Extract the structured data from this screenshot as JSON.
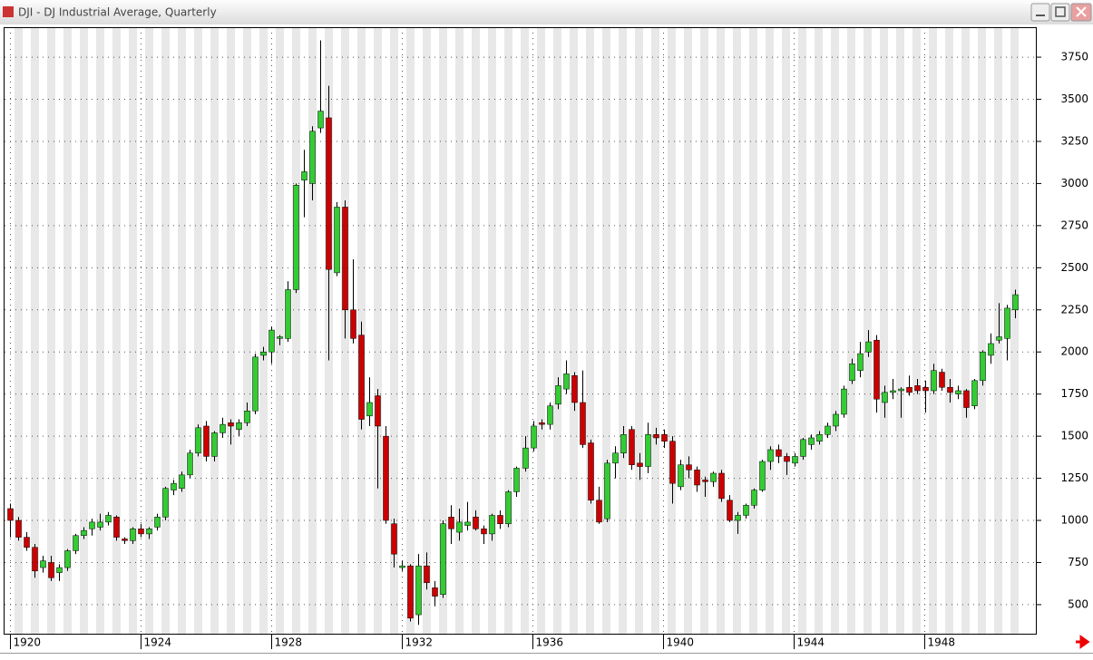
{
  "chart_data": {
    "type": "candlestick",
    "title": "DJI - DJ Industrial Average, Quarterly",
    "x": [
      1920,
      1920.25,
      1920.5,
      1920.75,
      1921,
      1921.25,
      1921.5,
      1921.75,
      1922,
      1922.25,
      1922.5,
      1922.75,
      1923,
      1923.25,
      1923.5,
      1923.75,
      1924,
      1924.25,
      1924.5,
      1924.75,
      1925,
      1925.25,
      1925.5,
      1925.75,
      1926,
      1926.25,
      1926.5,
      1926.75,
      1927,
      1927.25,
      1927.5,
      1927.75,
      1928,
      1928.25,
      1928.5,
      1928.75,
      1929,
      1929.25,
      1929.5,
      1929.75,
      1930,
      1930.25,
      1930.5,
      1930.75,
      1931,
      1931.25,
      1931.5,
      1931.75,
      1932,
      1932.25,
      1932.5,
      1932.75,
      1933,
      1933.25,
      1933.5,
      1933.75,
      1934,
      1934.25,
      1934.5,
      1934.75,
      1935,
      1935.25,
      1935.5,
      1935.75,
      1936,
      1936.25,
      1936.5,
      1936.75,
      1937,
      1937.25,
      1937.5,
      1937.75,
      1938,
      1938.25,
      1938.5,
      1938.75,
      1939,
      1939.25,
      1939.5,
      1939.75,
      1940,
      1940.25,
      1940.5,
      1940.75,
      1941,
      1941.25,
      1941.5,
      1941.75,
      1942,
      1942.25,
      1942.5,
      1942.75,
      1943,
      1943.25,
      1943.5,
      1943.75,
      1944,
      1944.25,
      1944.5,
      1944.75,
      1945,
      1945.25,
      1945.5,
      1945.75,
      1946,
      1946.25,
      1946.5,
      1946.75,
      1947,
      1947.25,
      1947.5,
      1947.75,
      1948,
      1948.25,
      1948.5,
      1948.75,
      1949,
      1949.25,
      1949.5,
      1949.75,
      1950,
      1950.25,
      1950.5,
      1950.75
    ],
    "open": [
      1070,
      1000,
      900,
      840,
      720,
      750,
      690,
      720,
      820,
      910,
      950,
      960,
      990,
      1020,
      890,
      880,
      950,
      920,
      960,
      1020,
      1180,
      1190,
      1270,
      1400,
      1560,
      1380,
      1520,
      1580,
      1540,
      1580,
      1650,
      1980,
      2000,
      2080,
      2080,
      2370,
      3020,
      3000,
      3330,
      3390,
      2470,
      2860,
      2250,
      2100,
      1620,
      1740,
      1500,
      980,
      720,
      730,
      440,
      730,
      600,
      560,
      1020,
      930,
      970,
      1020,
      950,
      920,
      1030,
      980,
      1170,
      1310,
      1430,
      1580,
      1570,
      1690,
      1780,
      1860,
      1700,
      1460,
      1120,
      1010,
      1340,
      1400,
      1540,
      1340,
      1320,
      1510,
      1510,
      1470,
      1200,
      1330,
      1300,
      1240,
      1230,
      1280,
      1120,
      1000,
      1030,
      1090,
      1180,
      1350,
      1420,
      1380,
      1340,
      1380,
      1450,
      1470,
      1510,
      1560,
      1630,
      1830,
      1890,
      2000,
      2070,
      1700,
      1760,
      1770,
      1790,
      1800,
      1790,
      1770,
      1880,
      1790,
      1750,
      1770,
      1680,
      1830,
      1980,
      2070,
      2080,
      2250
    ],
    "high": [
      1100,
      1020,
      930,
      860,
      790,
      790,
      740,
      830,
      920,
      960,
      1010,
      1040,
      1050,
      1030,
      900,
      960,
      980,
      960,
      1040,
      1200,
      1240,
      1290,
      1420,
      1570,
      1590,
      1530,
      1610,
      1600,
      1600,
      1700,
      1990,
      2030,
      2150,
      2100,
      2420,
      3000,
      3200,
      3340,
      3850,
      3580,
      2890,
      2900,
      2550,
      2180,
      1850,
      1780,
      1560,
      1010,
      760,
      740,
      800,
      810,
      640,
      1000,
      1090,
      1070,
      1110,
      1060,
      970,
      1040,
      1060,
      1180,
      1320,
      1500,
      1590,
      1600,
      1700,
      1850,
      1950,
      1880,
      1890,
      1480,
      1200,
      1360,
      1440,
      1560,
      1560,
      1400,
      1580,
      1550,
      1540,
      1500,
      1360,
      1380,
      1320,
      1260,
      1290,
      1300,
      1150,
      1050,
      1100,
      1190,
      1360,
      1440,
      1450,
      1400,
      1400,
      1490,
      1510,
      1530,
      1580,
      1650,
      1800,
      1960,
      2060,
      2130,
      2100,
      1800,
      1840,
      1790,
      1860,
      1840,
      1830,
      1930,
      1900,
      1840,
      1800,
      1780,
      1840,
      2010,
      2110,
      2290,
      2280,
      2370
    ],
    "low": [
      900,
      880,
      820,
      660,
      690,
      640,
      640,
      700,
      800,
      890,
      910,
      940,
      970,
      880,
      860,
      860,
      900,
      890,
      940,
      1000,
      1150,
      1170,
      1250,
      1380,
      1350,
      1350,
      1490,
      1450,
      1500,
      1560,
      1630,
      1950,
      1930,
      2040,
      2060,
      2350,
      2800,
      2900,
      3300,
      1950,
      2450,
      2080,
      2050,
      1540,
      1560,
      1190,
      980,
      720,
      700,
      400,
      380,
      590,
      490,
      540,
      860,
      880,
      940,
      940,
      860,
      880,
      950,
      960,
      1140,
      1290,
      1410,
      1540,
      1540,
      1660,
      1750,
      1650,
      1430,
      1100,
      980,
      990,
      1250,
      1370,
      1300,
      1240,
      1280,
      1450,
      1430,
      1100,
      1180,
      1250,
      1170,
      1140,
      1200,
      1110,
      990,
      920,
      1010,
      1070,
      1170,
      1300,
      1340,
      1270,
      1320,
      1360,
      1420,
      1450,
      1490,
      1530,
      1610,
      1810,
      1850,
      1970,
      1640,
      1610,
      1720,
      1610,
      1740,
      1750,
      1640,
      1750,
      1770,
      1700,
      1720,
      1610,
      1660,
      1800,
      1930,
      2050,
      1950,
      2200
    ],
    "close": [
      1000,
      900,
      840,
      700,
      760,
      660,
      720,
      820,
      910,
      940,
      990,
      990,
      1030,
      900,
      880,
      950,
      920,
      950,
      1020,
      1190,
      1220,
      1270,
      1400,
      1550,
      1380,
      1520,
      1570,
      1560,
      1580,
      1650,
      1970,
      2000,
      2130,
      2090,
      2370,
      2990,
      3070,
      3310,
      3430,
      2490,
      2860,
      2250,
      2080,
      1600,
      1700,
      1560,
      1000,
      800,
      730,
      420,
      730,
      630,
      550,
      980,
      950,
      990,
      990,
      950,
      920,
      1030,
      980,
      1170,
      1310,
      1430,
      1560,
      1570,
      1680,
      1800,
      1870,
      1700,
      1450,
      1120,
      990,
      1340,
      1400,
      1510,
      1330,
      1320,
      1510,
      1490,
      1470,
      1220,
      1330,
      1300,
      1210,
      1230,
      1280,
      1130,
      1000,
      1030,
      1090,
      1180,
      1350,
      1420,
      1380,
      1350,
      1380,
      1480,
      1490,
      1510,
      1560,
      1630,
      1780,
      1930,
      1990,
      2060,
      1720,
      1760,
      1770,
      1780,
      1760,
      1770,
      1770,
      1890,
      1790,
      1760,
      1770,
      1670,
      1830,
      2000,
      2050,
      2090,
      2260,
      2340
    ],
    "up_color": "#33cc33",
    "down_color": "#cc0000",
    "xlim": [
      1919.82,
      1951.43
    ],
    "xticks": [
      1920,
      1924,
      1928,
      1932,
      1936,
      1940,
      1944,
      1948
    ],
    "ylim": [
      322,
      3928
    ],
    "yticks": [
      500,
      750,
      1000,
      1250,
      1500,
      1750,
      2000,
      2250,
      2500,
      2750,
      3000,
      3250,
      3500,
      3750
    ],
    "grid": true
  }
}
